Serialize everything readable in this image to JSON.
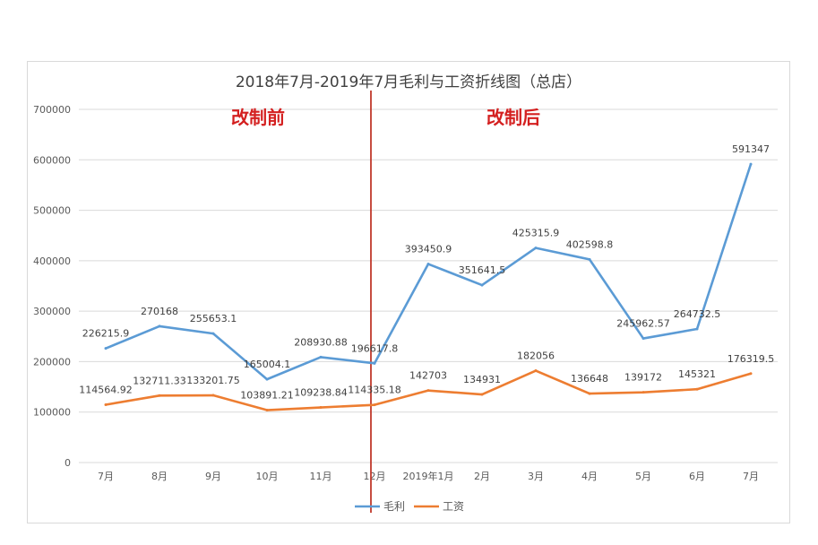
{
  "chart_data": {
    "type": "line",
    "title": "2018年7月-2019年7月毛利与工资折线图（总店）",
    "categories": [
      "7月",
      "8月",
      "9月",
      "10月",
      "11月",
      "12月",
      "2019年1月",
      "2月",
      "3月",
      "4月",
      "5月",
      "6月",
      "7月"
    ],
    "series": [
      {
        "name": "毛利",
        "color": "#5b9bd5",
        "values": [
          226215.9,
          270168,
          255653.1,
          165004.1,
          208930.88,
          196617.8,
          393450.9,
          351641.5,
          425315.9,
          402598.8,
          245962.57,
          264732.5,
          591347
        ],
        "labels": [
          "226215.9",
          "270168",
          "255653.1",
          "165004.1",
          "208930.88",
          "196617.8",
          "393450.9",
          "351641.5",
          "425315.9",
          "402598.8",
          "245962.57",
          "264732.5",
          "591347"
        ]
      },
      {
        "name": "工资",
        "color": "#ed7d31",
        "values": [
          114564.92,
          132711.33,
          133201.75,
          103891.21,
          109238.84,
          114335.18,
          142703,
          134931,
          182056,
          136648,
          139172,
          145321,
          176319.5
        ],
        "labels": [
          "114564.92",
          "132711.33",
          "133201.75",
          "103891.21",
          "109238.84",
          "114335.18",
          "142703",
          "134931",
          "182056",
          "136648",
          "139172",
          "145321",
          "176319.5"
        ]
      }
    ],
    "ylim": [
      0,
      700000
    ],
    "yticks": [
      "0",
      "100000",
      "200000",
      "300000",
      "400000",
      "500000",
      "600000",
      "700000"
    ],
    "grid": true,
    "legend_position": "bottom",
    "annotations": {
      "before": "改制前",
      "after": "改制后",
      "divider_after_category": "12月",
      "divider_color": "#c0392b"
    }
  }
}
